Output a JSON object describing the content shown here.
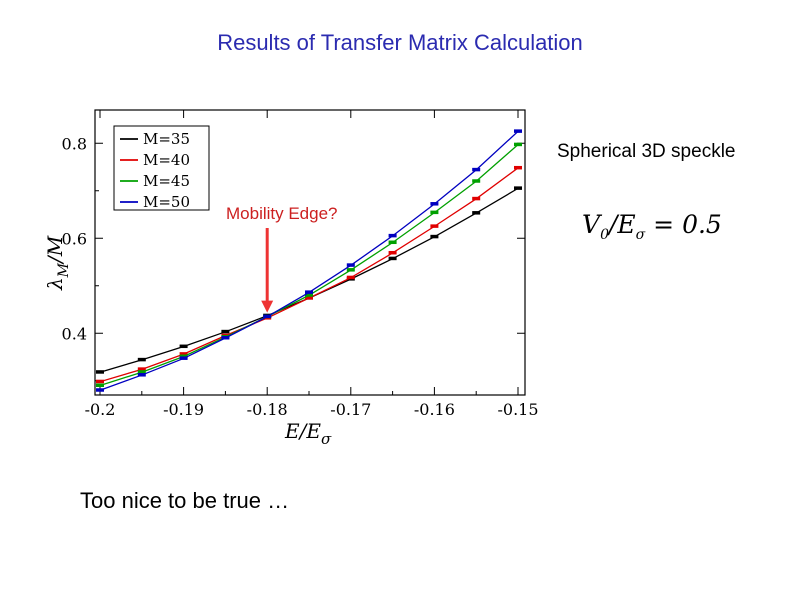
{
  "slide": {
    "title": "Results of Transfer Matrix Calculation",
    "side_label": "Spherical 3D speckle",
    "formula_v": "V",
    "formula_v_sub": "0",
    "formula_mid": "/E",
    "formula_e_sub": "σ",
    "formula_rhs": " = 0.5",
    "bottom_note": "Too nice to be true …"
  },
  "chart_data": {
    "type": "line",
    "xlabel": "E/Eσ",
    "ylabel": "λM/M",
    "xlim": [
      -0.2,
      -0.15
    ],
    "ylim": [
      0.27,
      0.87
    ],
    "x_ticks": [
      -0.2,
      -0.19,
      -0.18,
      -0.17,
      -0.16,
      -0.15
    ],
    "x_tick_labels": [
      "-0.2",
      "-0.19",
      "-0.18",
      "-0.17",
      "-0.16",
      "-0.15"
    ],
    "y_ticks": [
      0.4,
      0.6,
      0.8
    ],
    "y_tick_labels": [
      "0.4",
      "0.6",
      "0.8"
    ],
    "grid": false,
    "legend_position": "top-left",
    "x": [
      -0.2,
      -0.195,
      -0.19,
      -0.185,
      -0.18,
      -0.175,
      -0.17,
      -0.165,
      -0.16,
      -0.155,
      -0.15
    ],
    "series": [
      {
        "name": "M=35",
        "color": "#000000",
        "values": [
          0.318,
          0.344,
          0.372,
          0.403,
          0.437,
          0.474,
          0.514,
          0.557,
          0.603,
          0.653,
          0.705
        ]
      },
      {
        "name": "M=40",
        "color": "#e00000",
        "values": [
          0.298,
          0.324,
          0.356,
          0.395,
          0.432,
          0.474,
          0.517,
          0.569,
          0.625,
          0.683,
          0.748
        ]
      },
      {
        "name": "M=45",
        "color": "#00a000",
        "values": [
          0.29,
          0.318,
          0.351,
          0.392,
          0.435,
          0.48,
          0.533,
          0.591,
          0.654,
          0.72,
          0.797
        ]
      },
      {
        "name": "M=50",
        "color": "#0000c0",
        "values": [
          0.28,
          0.312,
          0.347,
          0.39,
          0.435,
          0.486,
          0.543,
          0.605,
          0.672,
          0.744,
          0.825
        ]
      }
    ],
    "annotation": {
      "text": "Mobility Edge?",
      "x": -0.18,
      "y": 0.435,
      "color": "#ee3333"
    }
  }
}
